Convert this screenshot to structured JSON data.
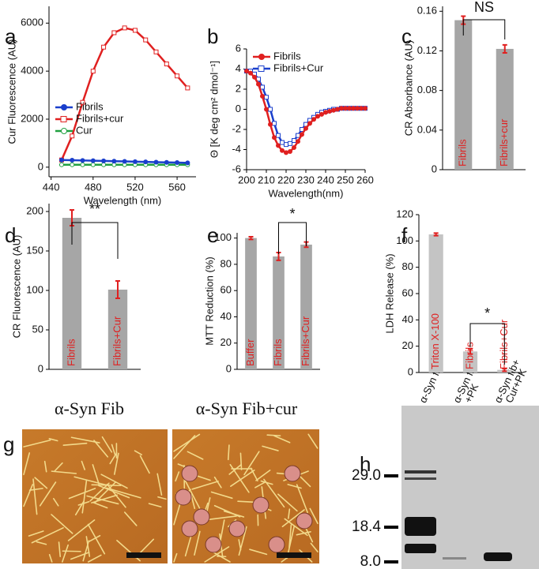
{
  "chart_data": [
    {
      "label": "a",
      "type": "line",
      "ylabel": "Cur Fluorescence (AU)",
      "xlabel": "Wavelength (nm)",
      "x": [
        450,
        460,
        470,
        480,
        490,
        500,
        510,
        520,
        530,
        540,
        550,
        560,
        570
      ],
      "series": [
        {
          "name": "Fibrils",
          "color": "#1a3fcc",
          "marker": "filled-circle",
          "values": [
            300,
            290,
            280,
            270,
            260,
            250,
            240,
            230,
            220,
            210,
            200,
            190,
            180
          ]
        },
        {
          "name": "Fibrils+cur",
          "color": "#e02020",
          "marker": "open-square",
          "values": [
            300,
            1300,
            2700,
            4000,
            5000,
            5600,
            5800,
            5700,
            5300,
            4800,
            4300,
            3800,
            3300
          ]
        },
        {
          "name": "Cur",
          "color": "#20a040",
          "marker": "open-circle",
          "values": [
            100,
            100,
            100,
            100,
            100,
            100,
            100,
            100,
            100,
            100,
            100,
            100,
            100
          ]
        }
      ],
      "xlim": [
        438,
        578
      ],
      "xticks": [
        440,
        480,
        520,
        560
      ],
      "ylim": [
        -400,
        6700
      ],
      "yticks": [
        0,
        2000,
        4000,
        6000
      ],
      "legend": "center left"
    },
    {
      "label": "b",
      "type": "line",
      "ylabel": "Θ [K deg cm² dmol⁻¹]",
      "xlabel": "Wavelength(nm)",
      "x": [
        200,
        202,
        204,
        206,
        208,
        210,
        212,
        214,
        216,
        218,
        220,
        222,
        224,
        226,
        228,
        230,
        232,
        234,
        236,
        238,
        240,
        242,
        244,
        246,
        248,
        250,
        252,
        254,
        256,
        258,
        260
      ],
      "series": [
        {
          "name": "Fibrils",
          "color": "#e02020",
          "marker": "filled-circle",
          "values": [
            3.8,
            3.6,
            3.2,
            2.5,
            1.3,
            0,
            -1.5,
            -2.8,
            -3.6,
            -4.1,
            -4.3,
            -4.2,
            -3.8,
            -3.2,
            -2.5,
            -1.9,
            -1.4,
            -1.0,
            -0.7,
            -0.5,
            -0.3,
            -0.2,
            -0.1,
            0,
            0.1,
            0.1,
            0.1,
            0.1,
            0.1,
            0.1,
            0.1
          ]
        },
        {
          "name": "Fibrils+Cur",
          "color": "#1a3fcc",
          "marker": "open-square",
          "values": [
            3.8,
            3.8,
            3.5,
            3.0,
            2.2,
            1.2,
            0,
            -1.4,
            -2.6,
            -3.3,
            -3.5,
            -3.4,
            -3.1,
            -2.6,
            -2.0,
            -1.5,
            -1.1,
            -0.8,
            -0.5,
            -0.3,
            -0.2,
            -0.1,
            0,
            0,
            0.1,
            0.1,
            0.1,
            0.1,
            0.1,
            0.1,
            0.1
          ]
        }
      ],
      "xlim": [
        200,
        260
      ],
      "xticks": [
        200,
        210,
        220,
        230,
        240,
        250,
        260
      ],
      "ylim": [
        -6,
        6
      ],
      "yticks": [
        -6,
        -4,
        -2,
        0,
        2,
        4,
        6
      ],
      "legend": "upper left"
    },
    {
      "label": "c",
      "type": "bar",
      "ylabel": "CR Absorbance (AU)",
      "annotation": "NS",
      "color": "#a6a6a6",
      "categories": [
        "Fibrils",
        "Fibrils+cur"
      ],
      "values": [
        0.151,
        0.122
      ],
      "errors": [
        0.004,
        0.004
      ],
      "ylim": [
        0,
        0.165
      ],
      "yticks": [
        0,
        0.04,
        0.08,
        0.12,
        0.16
      ]
    },
    {
      "label": "d",
      "type": "bar",
      "ylabel": "CR Fluorescence (AU)",
      "annotation": "**",
      "color": "#a6a6a6",
      "categories": [
        "Fibrils",
        "Fibrils+Cur"
      ],
      "values": [
        192,
        101
      ],
      "errors": [
        10,
        11
      ],
      "ylim": [
        0,
        210
      ],
      "yticks": [
        0,
        50,
        100,
        150,
        200
      ]
    },
    {
      "label": "e",
      "type": "bar",
      "ylabel": "MTT Reduction (%)",
      "annotation": "*",
      "color": "#a6a6a6",
      "categories": [
        "Buffer",
        "Fibrils",
        "Fibrils+Cur"
      ],
      "values": [
        100,
        86,
        95
      ],
      "errors": [
        1,
        3,
        2
      ],
      "ylim": [
        0,
        104
      ],
      "yticks": [
        0,
        20,
        40,
        60,
        80,
        100
      ]
    },
    {
      "label": "f",
      "type": "bar",
      "ylabel": "LDH Release (%)",
      "annotation": "*",
      "color": "#c4c4c4",
      "categories": [
        "Triton X-100",
        "Fibrils",
        "Fibrils+Cur"
      ],
      "values": [
        105,
        16,
        2
      ],
      "errors": [
        1,
        2,
        1
      ],
      "ylim": [
        0,
        120
      ],
      "yticks": [
        0,
        20,
        40,
        60,
        80,
        100,
        120
      ]
    }
  ],
  "images": [
    {
      "label": "g",
      "titles": [
        "α-Syn Fib",
        "α-Syn Fib+cur"
      ]
    },
    {
      "label": "h",
      "lanes": [
        [
          "α-Syn fib"
        ],
        [
          "α-Syn fib",
          "+PK"
        ],
        [
          "α-Syn fib+",
          "Cur+PK"
        ]
      ],
      "markers": [
        {
          "value": 29.0,
          "label": "29.0"
        },
        {
          "value": 18.4,
          "label": "18.4"
        },
        {
          "value": 8.0,
          "label": "8.0"
        }
      ]
    }
  ]
}
